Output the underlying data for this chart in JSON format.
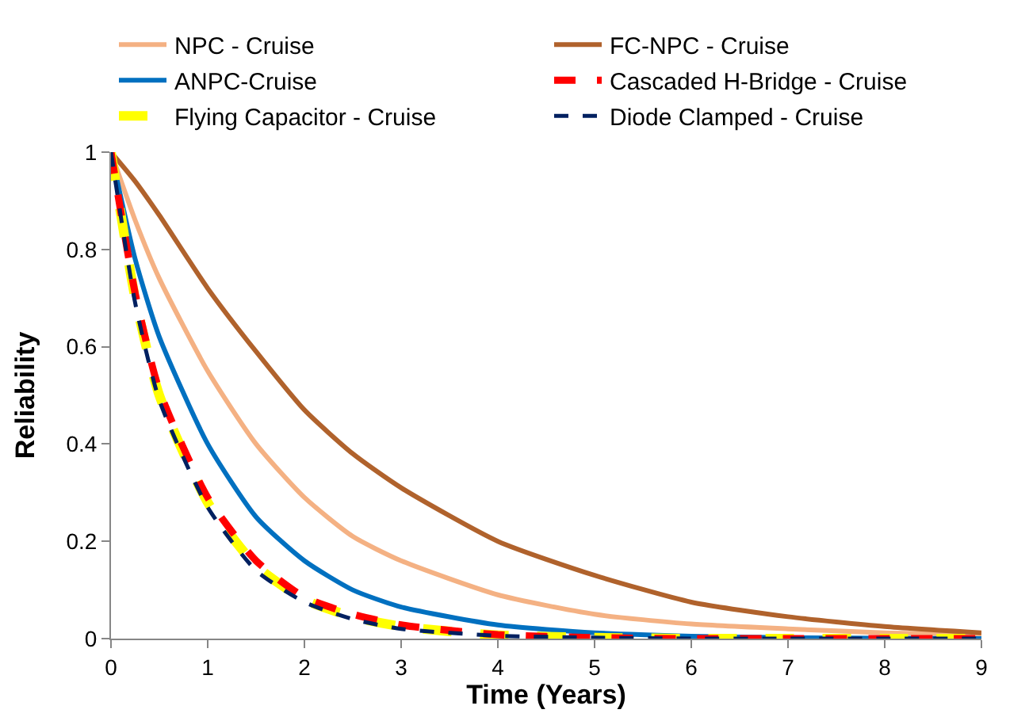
{
  "chart_data": {
    "type": "line",
    "xlabel": "Time (Years)",
    "ylabel": "Reliability",
    "x": [
      0,
      0.25,
      0.5,
      1,
      1.5,
      2,
      2.5,
      3,
      4,
      5,
      6,
      7,
      8,
      9
    ],
    "series": [
      {
        "name": "NPC - Cruise",
        "color": "#f4b183",
        "line_style": "solid",
        "values": [
          1,
          0.86,
          0.74,
          0.55,
          0.4,
          0.29,
          0.21,
          0.16,
          0.09,
          0.05,
          0.03,
          0.02,
          0.012,
          0.01
        ]
      },
      {
        "name": "FC-NPC - Cruise",
        "color": "#b0622c",
        "line_style": "solid",
        "values": [
          1,
          0.94,
          0.87,
          0.72,
          0.59,
          0.47,
          0.38,
          0.31,
          0.2,
          0.13,
          0.075,
          0.045,
          0.025,
          0.012
        ]
      },
      {
        "name": "ANPC-Cruise",
        "color": "#0070c0",
        "line_style": "solid",
        "values": [
          1,
          0.78,
          0.62,
          0.4,
          0.25,
          0.16,
          0.1,
          0.065,
          0.028,
          0.012,
          0.005,
          0.002,
          0.001,
          0
        ]
      },
      {
        "name": "Cascaded H-Bridge - Cruise",
        "color": "#ff0000",
        "line_style": "dashed",
        "values": [
          1,
          0.71,
          0.51,
          0.29,
          0.16,
          0.085,
          0.05,
          0.028,
          0.008,
          0.002,
          0,
          0,
          0,
          0
        ]
      },
      {
        "name": "Flying Capacitor - Cruise",
        "color": "#ffff00",
        "line_style": "dashed",
        "values": [
          1,
          0.7,
          0.5,
          0.28,
          0.15,
          0.08,
          0.045,
          0.025,
          0.007,
          0.002,
          0,
          0,
          0,
          0
        ]
      },
      {
        "name": "Diode Clamped - Cruise",
        "color": "#002060",
        "line_style": "dashed",
        "values": [
          1,
          0.69,
          0.49,
          0.27,
          0.14,
          0.075,
          0.04,
          0.02,
          0.006,
          0.002,
          0,
          0,
          0,
          0
        ]
      }
    ],
    "xlim": [
      0,
      9
    ],
    "xticks": [
      0,
      1,
      2,
      3,
      4,
      5,
      6,
      7,
      8,
      9
    ],
    "ylim": [
      0,
      1
    ],
    "yticks": [
      0,
      0.2,
      0.4,
      0.6,
      0.8,
      1
    ],
    "legend": "top",
    "marker": "none"
  }
}
